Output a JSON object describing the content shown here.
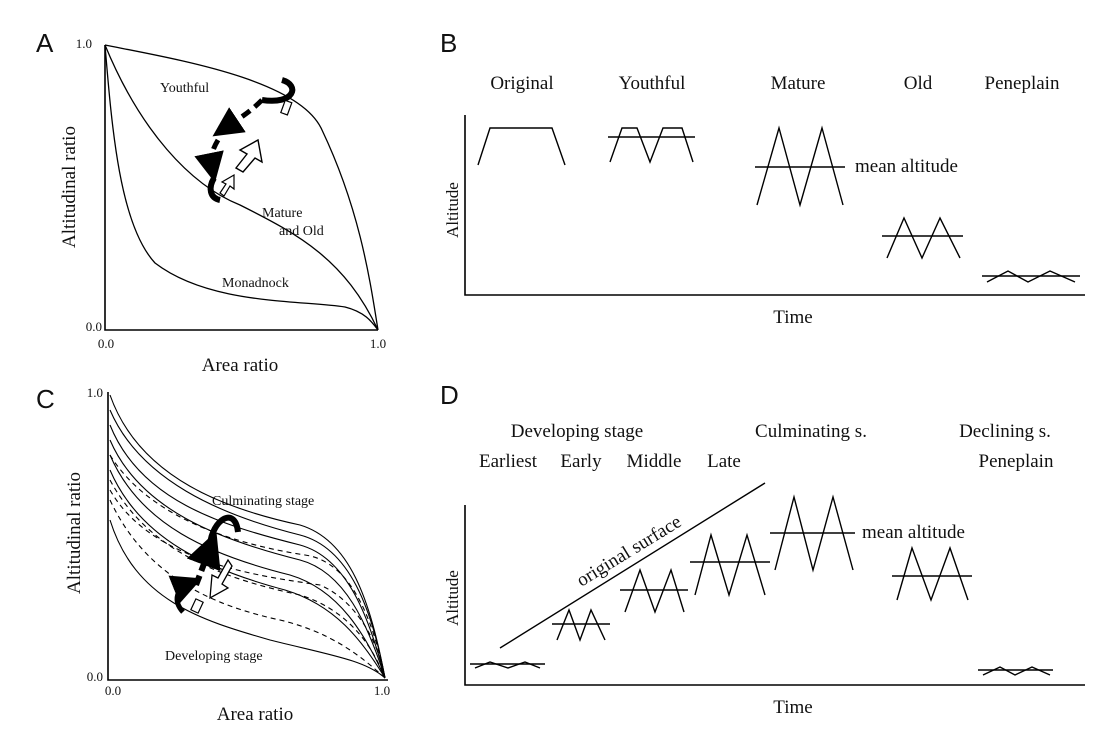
{
  "panels": {
    "A": {
      "letter": "A",
      "y_axis_label": "Altitudinal ratio",
      "x_axis_label": "Area ratio",
      "y_tick_top": "1.0",
      "y_tick_bottom": "0.0",
      "x_tick_left": "0.0",
      "x_tick_right": "1.0",
      "curve_labels": {
        "youthful": "Youthful",
        "mature_line1": "Mature",
        "mature_line2": "and Old",
        "monadnock": "Monadnock"
      }
    },
    "B": {
      "letter": "B",
      "stages": [
        "Original",
        "Youthful",
        "Mature",
        "Old",
        "Peneplain"
      ],
      "y_axis_label": "Altitude",
      "x_axis_label": "Time",
      "mean_altitude_label": "mean altitude"
    },
    "C": {
      "letter": "C",
      "y_axis_label": "Altitudinal ratio",
      "x_axis_label": "Area ratio",
      "y_tick_top": "1.0",
      "y_tick_bottom": "0.0",
      "x_tick_left": "0.0",
      "x_tick_right": "1.0",
      "culminating_label": "Culminating stage",
      "developing_label": "Developing stage"
    },
    "D": {
      "letter": "D",
      "group_labels": {
        "developing": "Developing stage",
        "culminating": "Culminating s.",
        "declining": "Declining s."
      },
      "sub_labels": {
        "earliest": "Earliest",
        "early": "Early",
        "middle": "Middle",
        "late": "Late",
        "peneplain": "Peneplain"
      },
      "original_surface_label": "original surface",
      "mean_altitude_label": "mean altitude",
      "y_axis_label": "Altitude",
      "x_axis_label": "Time"
    }
  }
}
